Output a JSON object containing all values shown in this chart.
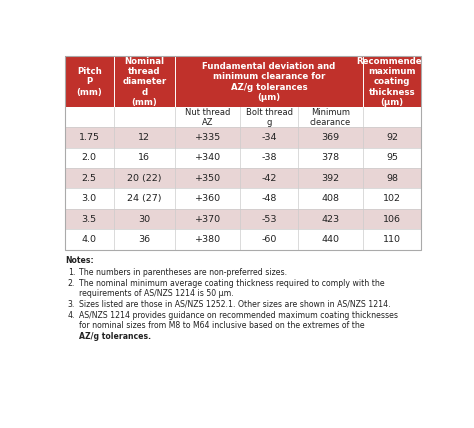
{
  "header_red": "#c0312b",
  "white": "#ffffff",
  "light_pink": "#e8d5d5",
  "light_gray": "#f0f0f0",
  "text_dark": "#222222",
  "line_color": "#cccccc",
  "col_props": [
    0.118,
    0.148,
    0.158,
    0.138,
    0.158,
    0.14
  ],
  "header_texts": [
    "Pitch\nP\n(mm)",
    "Nominal\nthread\ndiameter\nd\n(mm)",
    "Fundamental deviation and\nminimum clearance for\nAZ/g tolerances\n(μm)",
    "Recommended\nmaximum\ncoating\nthickness\n(μm)"
  ],
  "subheaders": [
    "",
    "",
    "Nut thread\nAZ",
    "Bolt thread\ng",
    "Minimum\nclearance",
    ""
  ],
  "rows": [
    [
      "1.75",
      "12",
      "+335",
      "-34",
      "369",
      "92"
    ],
    [
      "2.0",
      "16",
      "+340",
      "-38",
      "378",
      "95"
    ],
    [
      "2.5",
      "20 (22)",
      "+350",
      "-42",
      "392",
      "98"
    ],
    [
      "3.0",
      "24 (27)",
      "+360",
      "-48",
      "408",
      "102"
    ],
    [
      "3.5",
      "30",
      "+370",
      "-53",
      "423",
      "106"
    ],
    [
      "4.0",
      "36",
      "+380",
      "-60",
      "440",
      "110"
    ]
  ],
  "row_colors": [
    "#e8d5d5",
    "#ffffff",
    "#e8d5d5",
    "#ffffff",
    "#e8d5d5",
    "#ffffff"
  ],
  "notes_title": "Notes:",
  "notes": [
    [
      "1.",
      "The numbers in parentheses are non-preferred sizes."
    ],
    [
      "2.",
      "The nominal minimum average coating thickness required to comply with the\nrequirements of AS/NZS 1214 is 50 μm."
    ],
    [
      "3.",
      "Sizes listed are those in AS/NZS 1252.1. Other sizes are shown in AS/NZS 1214."
    ],
    [
      "4.",
      "AS/NZS 1214 provides guidance on recommended maximum coating thicknesses\nfor nominal sizes from M8 to M64 inclusive based on the extremes of the"
    ]
  ],
  "note4_bold": "AZ/g tolerances.",
  "bg_color": "#ffffff"
}
